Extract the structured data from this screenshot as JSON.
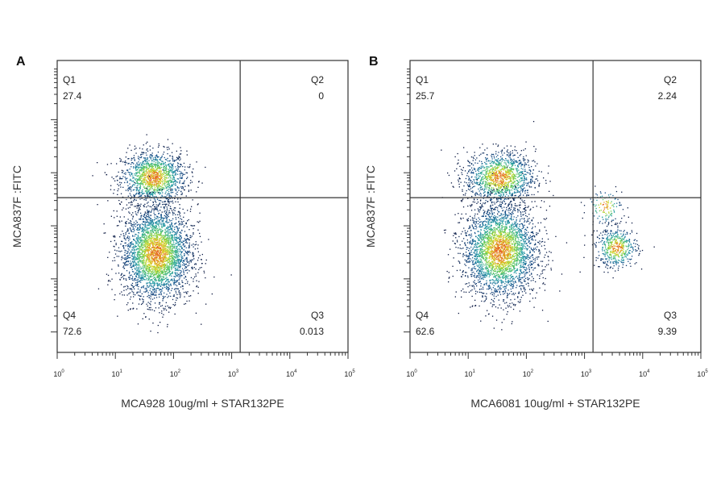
{
  "chart_data": [
    {
      "type": "scatter",
      "panel": "A",
      "xlabel": "MCA928 10ug/ml + STAR132PE",
      "ylabel": "MCA837F :FITC",
      "x_scale": "log",
      "xlim": [
        1,
        100000
      ],
      "x_ticks": [
        "10",
        "10",
        "10",
        "10",
        "10",
        "10"
      ],
      "x_tick_exps": [
        "0",
        "1",
        "2",
        "3",
        "4",
        "5"
      ],
      "gate_x": 1400,
      "gate_y_fraction": 0.53,
      "quadrants": [
        {
          "name": "Q1",
          "percent": "27.4"
        },
        {
          "name": "Q2",
          "percent": "0"
        },
        {
          "name": "Q3",
          "percent": "0.013"
        },
        {
          "name": "Q4",
          "percent": "72.6"
        }
      ],
      "populations": [
        {
          "x_center": 45,
          "y_fraction": 0.6,
          "spread_x_decades": 0.28,
          "spread_y": 0.045,
          "count": 1400
        },
        {
          "x_center": 50,
          "y_fraction": 0.34,
          "spread_x_decades": 0.3,
          "spread_y": 0.08,
          "count": 3200
        }
      ]
    },
    {
      "type": "scatter",
      "panel": "B",
      "xlabel": "MCA6081 10ug/ml + STAR132PE",
      "ylabel": "MCA837F :FITC",
      "x_scale": "log",
      "xlim": [
        1,
        100000
      ],
      "x_ticks": [
        "10",
        "10",
        "10",
        "10",
        "10",
        "10"
      ],
      "x_tick_exps": [
        "0",
        "1",
        "2",
        "3",
        "4",
        "5"
      ],
      "gate_x": 1400,
      "gate_y_fraction": 0.53,
      "quadrants": [
        {
          "name": "Q1",
          "percent": "25.7"
        },
        {
          "name": "Q2",
          "percent": "2.24"
        },
        {
          "name": "Q3",
          "percent": "9.39"
        },
        {
          "name": "Q4",
          "percent": "62.6"
        }
      ],
      "populations": [
        {
          "x_center": 35,
          "y_fraction": 0.6,
          "spread_x_decades": 0.3,
          "spread_y": 0.045,
          "count": 1300
        },
        {
          "x_center": 35,
          "y_fraction": 0.35,
          "spread_x_decades": 0.32,
          "spread_y": 0.08,
          "count": 3000
        },
        {
          "x_center": 3500,
          "y_fraction": 0.36,
          "spread_x_decades": 0.18,
          "spread_y": 0.035,
          "count": 500
        },
        {
          "x_center": 2200,
          "y_fraction": 0.5,
          "spread_x_decades": 0.15,
          "spread_y": 0.03,
          "count": 130
        }
      ]
    }
  ]
}
